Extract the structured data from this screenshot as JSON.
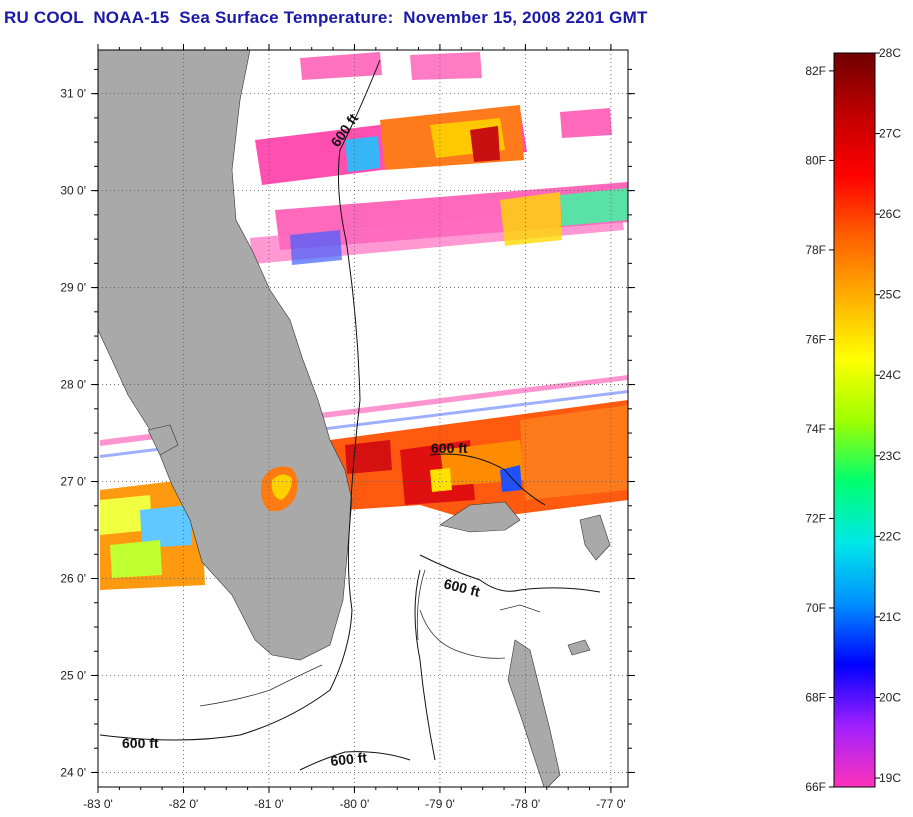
{
  "title": "RU COOL  NOAA-15  Sea Surface Temperature:  November 15, 2008 2201 GMT",
  "map": {
    "lon_range": [
      -83,
      -76.8
    ],
    "lat_range": [
      23.85,
      31.45
    ],
    "lon_ticks": [
      {
        "value": -83,
        "label": "-83 0'"
      },
      {
        "value": -82,
        "label": "-82 0'"
      },
      {
        "value": -81,
        "label": "-81 0'"
      },
      {
        "value": -80,
        "label": "-80 0'"
      },
      {
        "value": -79,
        "label": "-79 0'"
      },
      {
        "value": -78,
        "label": "-78 0'"
      },
      {
        "value": -77,
        "label": "-77 0'"
      }
    ],
    "lat_ticks": [
      {
        "value": 31,
        "label": "31 0'"
      },
      {
        "value": 30,
        "label": "30 0'"
      },
      {
        "value": 29,
        "label": "29 0'"
      },
      {
        "value": 28,
        "label": "28 0'"
      },
      {
        "value": 27,
        "label": "27 0'"
      },
      {
        "value": 26,
        "label": "26 0'"
      },
      {
        "value": 25,
        "label": "25 0'"
      },
      {
        "value": 24,
        "label": "24 0'"
      }
    ],
    "grid": "dotted",
    "land_color": "#a9a9a9",
    "contour_labels": [
      "600 ft",
      "600 ft",
      "600 ft",
      "600 ft",
      "600 ft"
    ]
  },
  "colorbar": {
    "fahrenheit_labels": [
      "82F",
      "80F",
      "78F",
      "76F",
      "74F",
      "72F",
      "70F",
      "68F",
      "66F"
    ],
    "celsius_labels": [
      "28C",
      "27C",
      "26C",
      "25C",
      "24C",
      "23C",
      "22C",
      "21C",
      "20C",
      "19C"
    ],
    "colors": [
      "#ff33bb",
      "#a020ff",
      "#0000ff",
      "#0090ff",
      "#00e8e8",
      "#00ff70",
      "#a0ff00",
      "#ffff00",
      "#ffb000",
      "#ff6000",
      "#ff0000",
      "#c00000",
      "#700000"
    ]
  }
}
